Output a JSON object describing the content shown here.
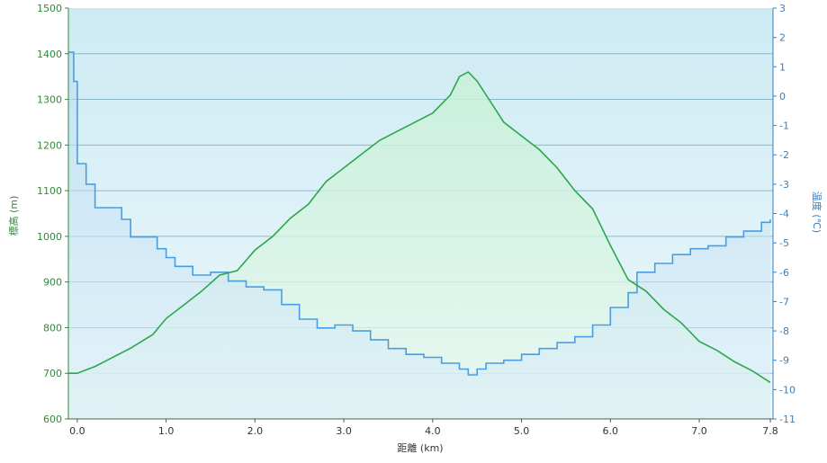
{
  "chart_data": {
    "type": "line",
    "xlabel": "距離 (km)",
    "ylabel": "標高 (m)",
    "y2label": "温度 (℃)",
    "xlim": [
      -0.1,
      7.83
    ],
    "ylim": [
      600,
      1500
    ],
    "y2lim": [
      -11,
      3
    ],
    "x_ticks": [
      "0.0",
      "1.0",
      "2.0",
      "3.0",
      "4.0",
      "5.0",
      "6.0",
      "7.0",
      "7.8"
    ],
    "x_tick_values": [
      0.0,
      1.0,
      2.0,
      3.0,
      4.0,
      5.0,
      6.0,
      7.0,
      7.8
    ],
    "y_ticks": [
      "600",
      "700",
      "800",
      "900",
      "1000",
      "1100",
      "1200",
      "1300",
      "1400",
      "1500"
    ],
    "y2_ticks": [
      "-11",
      "-10",
      "-9",
      "-8",
      "-7",
      "-6",
      "-5",
      "-4",
      "-3",
      "-2",
      "-1",
      "0",
      "1",
      "2",
      "3"
    ],
    "grid": true,
    "colors": {
      "elevation": "#2aa84a",
      "temperature": "#4a9ee0",
      "grid": "#8fb7c9",
      "background_top": "#cdeaf3",
      "background_bottom": "#eaf7fb"
    },
    "series": [
      {
        "name": "標高",
        "axis": "left",
        "x": [
          -0.1,
          0.0,
          0.2,
          0.4,
          0.6,
          0.85,
          1.0,
          1.2,
          1.4,
          1.6,
          1.8,
          2.0,
          2.2,
          2.4,
          2.6,
          2.8,
          3.0,
          3.2,
          3.4,
          3.6,
          3.8,
          4.0,
          4.2,
          4.3,
          4.4,
          4.5,
          4.6,
          4.8,
          5.0,
          5.2,
          5.4,
          5.6,
          5.8,
          6.0,
          6.2,
          6.4,
          6.6,
          6.8,
          7.0,
          7.2,
          7.4,
          7.6,
          7.8
        ],
        "y": [
          700,
          700,
          715,
          735,
          755,
          785,
          820,
          850,
          880,
          915,
          925,
          970,
          1000,
          1040,
          1070,
          1120,
          1150,
          1180,
          1210,
          1230,
          1250,
          1270,
          1310,
          1350,
          1360,
          1340,
          1310,
          1250,
          1220,
          1190,
          1150,
          1100,
          1060,
          980,
          905,
          880,
          840,
          810,
          770,
          750,
          725,
          705,
          680
        ]
      },
      {
        "name": "温度",
        "axis": "right",
        "x": [
          -0.1,
          -0.04,
          0.0,
          0.1,
          0.2,
          0.5,
          0.6,
          0.9,
          1.0,
          1.1,
          1.3,
          1.5,
          1.7,
          1.9,
          2.1,
          2.3,
          2.5,
          2.7,
          2.9,
          3.1,
          3.3,
          3.5,
          3.7,
          3.9,
          4.1,
          4.3,
          4.4,
          4.5,
          4.6,
          4.8,
          5.0,
          5.2,
          5.4,
          5.6,
          5.8,
          6.0,
          6.2,
          6.3,
          6.5,
          6.7,
          6.9,
          7.1,
          7.3,
          7.5,
          7.7,
          7.8
        ],
        "y": [
          1.5,
          0.5,
          -2.3,
          -3.0,
          -3.8,
          -4.2,
          -4.8,
          -5.2,
          -5.5,
          -5.8,
          -6.1,
          -6.0,
          -6.3,
          -6.5,
          -6.6,
          -7.1,
          -7.6,
          -7.9,
          -7.8,
          -8.0,
          -8.3,
          -8.6,
          -8.8,
          -8.9,
          -9.1,
          -9.3,
          -9.5,
          -9.3,
          -9.1,
          -9.0,
          -8.8,
          -8.6,
          -8.4,
          -8.2,
          -7.8,
          -7.2,
          -6.7,
          -6.0,
          -5.7,
          -5.4,
          -5.2,
          -5.1,
          -4.8,
          -4.6,
          -4.3,
          -4.2
        ]
      }
    ]
  }
}
